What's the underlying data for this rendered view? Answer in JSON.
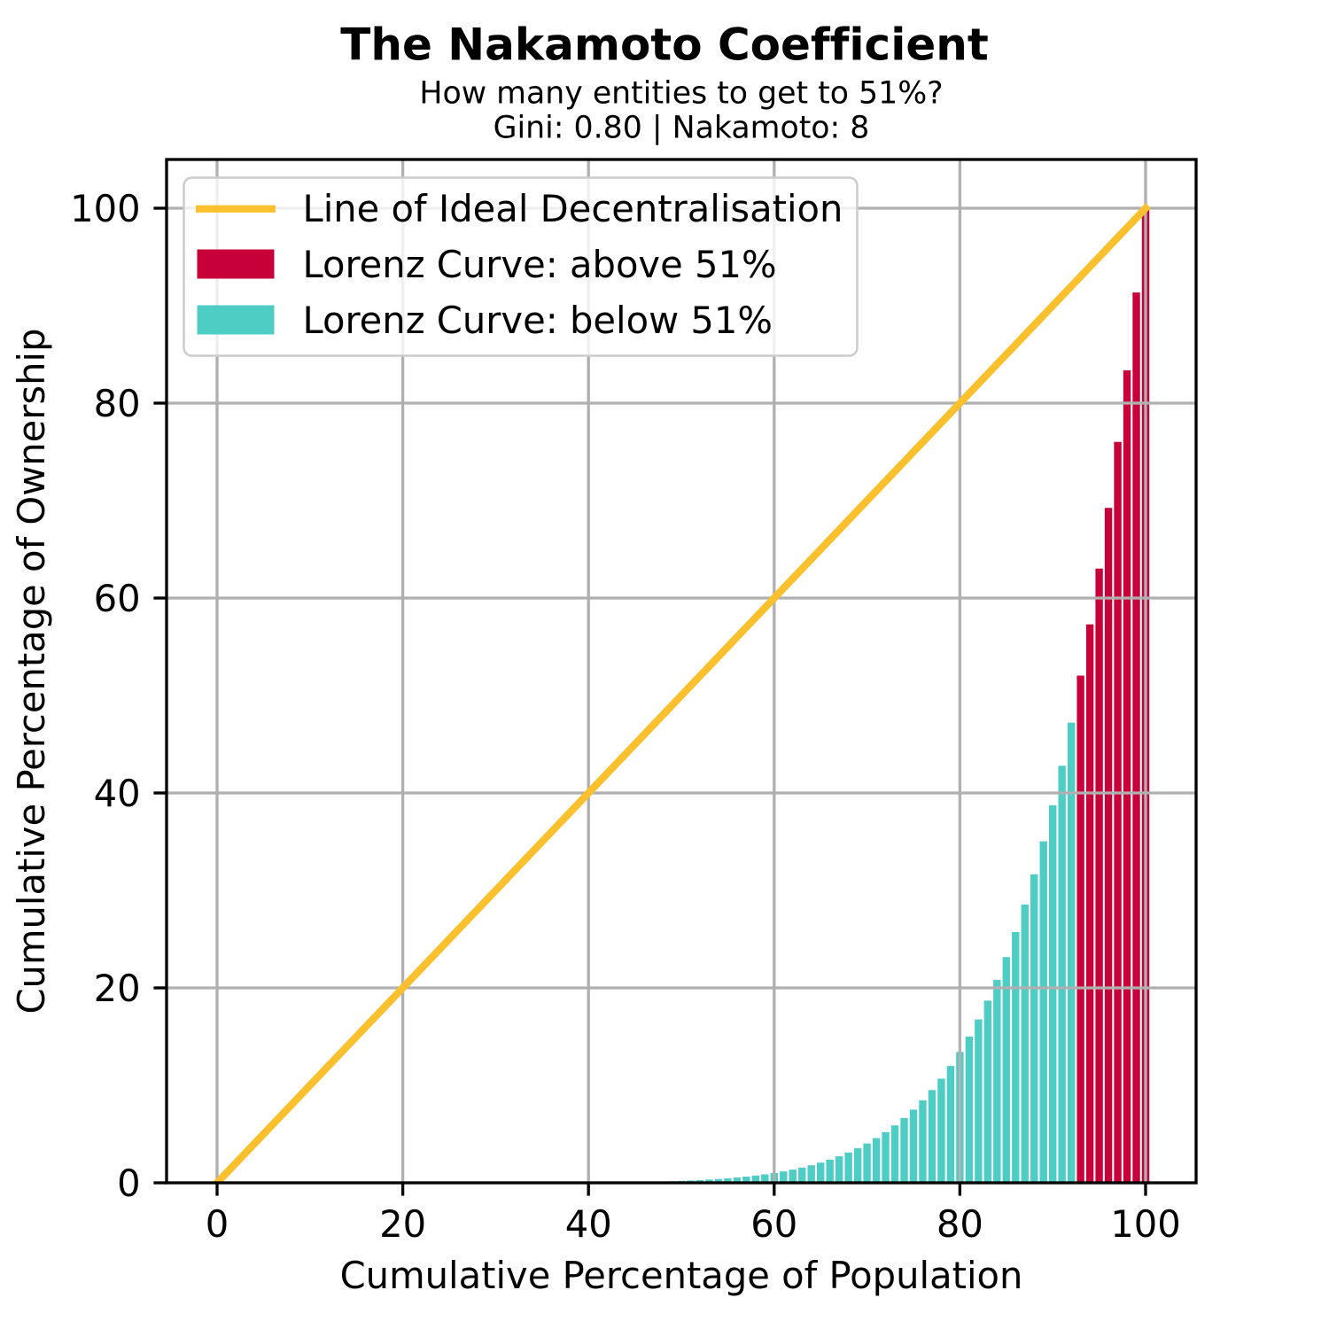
{
  "chart_data": {
    "type": "bar",
    "title": "The Nakamoto Coefficient",
    "subtitle": "How many entities to get to 51%?",
    "stats_line": "Gini: 0.80 | Nakamoto: 8",
    "gini": "0.80",
    "nakamoto": 8,
    "xlabel": "Cumulative Percentage of Population",
    "ylabel": "Cumulative Percentage of Ownership",
    "xlim": [
      -5.44,
      105.44
    ],
    "ylim": [
      0,
      105
    ],
    "xticks": [
      0,
      20,
      40,
      60,
      80,
      100
    ],
    "yticks": [
      0,
      20,
      40,
      60,
      80,
      100
    ],
    "grid": true,
    "ideal_line": {
      "label": "Line of Ideal Decentralisation",
      "x": [
        0,
        100
      ],
      "y": [
        0,
        100
      ]
    },
    "bars": {
      "label_above": "Lorenz Curve: above 51%",
      "label_below": "Lorenz Curve: below 51%",
      "x": [
        0,
        1,
        2,
        3,
        4,
        5,
        6,
        7,
        8,
        9,
        10,
        11,
        12,
        13,
        14,
        15,
        16,
        17,
        18,
        19,
        20,
        21,
        22,
        23,
        24,
        25,
        26,
        27,
        28,
        29,
        30,
        31,
        32,
        33,
        34,
        35,
        36,
        37,
        38,
        39,
        40,
        41,
        42,
        43,
        44,
        45,
        46,
        47,
        48,
        49,
        50,
        51,
        52,
        53,
        54,
        55,
        56,
        57,
        58,
        59,
        60,
        61,
        62,
        63,
        64,
        65,
        66,
        67,
        68,
        69,
        70,
        71,
        72,
        73,
        74,
        75,
        76,
        77,
        78,
        79,
        80,
        81,
        82,
        83,
        84,
        85,
        86,
        87,
        88,
        89,
        90,
        91,
        92,
        93,
        94,
        95,
        96,
        97,
        98,
        99,
        100
      ],
      "values": [
        0.0,
        0.0,
        0.0,
        0.0,
        0.0,
        0.0,
        0.0,
        0.0,
        0.0,
        0.0,
        0.0,
        0.0,
        0.0,
        0.0,
        0.0,
        0.0,
        0.0,
        0.0,
        0.0,
        0.0,
        0.0001,
        0.0001,
        0.0001,
        0.0002,
        0.0003,
        0.0004,
        0.0005,
        0.0008,
        0.0011,
        0.0015,
        0.002,
        0.0026,
        0.0035,
        0.0046,
        0.0061,
        0.0079,
        0.0102,
        0.013,
        0.0165,
        0.0209,
        0.0262,
        0.0327,
        0.0407,
        0.0503,
        0.0618,
        0.0757,
        0.0922,
        0.1119,
        0.1353,
        0.1628,
        0.1953,
        0.2334,
        0.278,
        0.33,
        0.3904,
        0.4605,
        0.5416,
        0.6351,
        0.7428,
        0.8663,
        1.0078,
        1.1694,
        1.3537,
        1.5634,
        1.8014,
        2.0712,
        2.3763,
        2.7207,
        3.1087,
        3.5452,
        4.0354,
        4.5849,
        5.1999,
        5.8872,
        6.654,
        7.5085,
        8.4591,
        9.5152,
        10.6869,
        11.9852,
        13.4218,
        15.0095,
        16.762,
        18.694,
        20.8216,
        23.1617,
        25.7327,
        28.5544,
        31.6478,
        35.0356,
        38.742,
        42.793,
        47.2161,
        52.0411,
        57.2995,
        63.0249,
        69.2534,
        76.0231,
        83.3748,
        91.3517,
        100.0
      ],
      "width": 0.8,
      "threshold": 49,
      "first_above_index": 93
    },
    "colors": {
      "ideal_line": "#FBC02D",
      "above": "#C70039",
      "below": "#4ECDC4",
      "grid": "#B0B0B0",
      "spine": "#000000",
      "tick": "#000000",
      "text": "#000000",
      "background": "#FFFFFF",
      "legend_border": "#CCCCCC",
      "legend_fill_alpha": 0.8
    },
    "legend": {
      "position": "upper left",
      "items": [
        {
          "label": "Line of Ideal Decentralisation",
          "swatch": "line",
          "color": "#FBC02D"
        },
        {
          "label": "Lorenz Curve: above 51%",
          "swatch": "patch",
          "color": "#C70039"
        },
        {
          "label": "Lorenz Curve: below 51%",
          "swatch": "patch",
          "color": "#4ECDC4"
        }
      ]
    }
  }
}
